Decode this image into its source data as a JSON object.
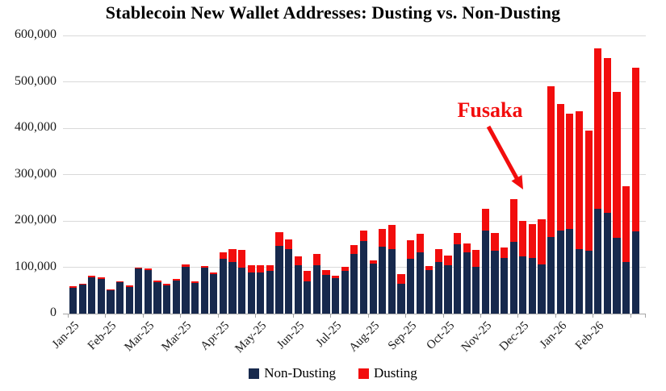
{
  "title": "Stablecoin New Wallet Addresses: Dusting vs. Non-Dusting",
  "legend": {
    "items": [
      {
        "label": "Non-Dusting",
        "color": "#17294d"
      },
      {
        "label": "Dusting",
        "color": "#f20d0d"
      }
    ]
  },
  "colors": {
    "non_dusting": "#17294d",
    "dusting": "#f20d0d",
    "annotation": "#f20d0d",
    "gridline": "#d9d9d9",
    "axis": "#a6a6a6"
  },
  "chart_data": {
    "type": "bar",
    "stacked": true,
    "title": "Stablecoin New Wallet Addresses: Dusting vs. Non-Dusting",
    "x_unit": "weekly",
    "x_tick_labels": [
      "Jan-25",
      "Feb-25",
      "Mar-25",
      "Mar-25",
      "Apr-25",
      "May-25",
      "Jun-25",
      "Jul-25",
      "Aug-25",
      "Sep-25",
      "Oct-25",
      "Nov-25",
      "Dec-25",
      "Jan-26",
      "Feb-26"
    ],
    "x_label_every_n_bars": 4,
    "n_bars": 61,
    "ylim": [
      0,
      600000
    ],
    "y_tick_step": 100000,
    "y_tick_labels": [
      "0",
      "100,000",
      "200,000",
      "300,000",
      "400,000",
      "500,000",
      "600,000"
    ],
    "grid": "horizontal",
    "legend_position": "bottom",
    "annotation": {
      "text": "Fusaka",
      "points_to": "Dec-25"
    },
    "series": [
      {
        "name": "Non-Dusting",
        "color": "#17294d",
        "values": [
          56000,
          62000,
          78000,
          75000,
          50000,
          67000,
          57000,
          97000,
          94000,
          68000,
          61000,
          71000,
          101000,
          66000,
          99000,
          85000,
          118000,
          112000,
          100000,
          88000,
          88000,
          92000,
          146000,
          140000,
          104000,
          70000,
          105000,
          83000,
          76000,
          92000,
          128000,
          156000,
          107000,
          144000,
          139000,
          64000,
          118000,
          133000,
          94000,
          111000,
          104000,
          149000,
          132000,
          101000,
          179000,
          135000,
          120000,
          154000,
          123000,
          120000,
          106000,
          166000,
          180000,
          182000,
          139000,
          136000,
          226000,
          218000,
          163000,
          112000,
          178000
        ]
      },
      {
        "name": "Dusting",
        "color": "#f20d0d",
        "values": [
          3000,
          3000,
          4000,
          3000,
          2000,
          3000,
          4000,
          3000,
          4000,
          4000,
          3000,
          3000,
          5000,
          3000,
          4000,
          3000,
          15000,
          28000,
          37000,
          16000,
          16000,
          13000,
          30000,
          20000,
          19000,
          22000,
          23000,
          11000,
          6000,
          9000,
          20000,
          24000,
          8000,
          39000,
          53000,
          21000,
          40000,
          40000,
          9000,
          29000,
          21000,
          25000,
          19000,
          36000,
          47000,
          39000,
          22000,
          93000,
          77000,
          73000,
          98000,
          324000,
          272000,
          249000,
          298000,
          259000,
          347000,
          333000,
          316000,
          163000,
          353000
        ]
      }
    ]
  }
}
